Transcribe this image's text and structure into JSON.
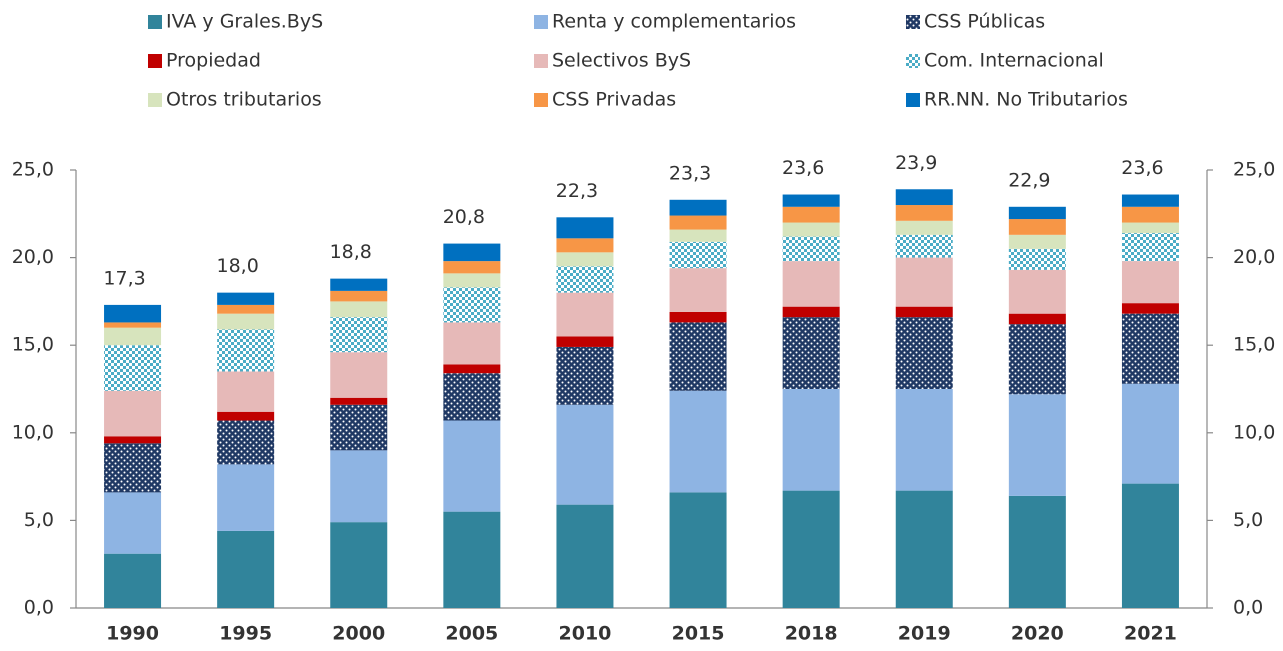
{
  "chart_data": {
    "type": "stacked_bar",
    "categories": [
      "1990",
      "1995",
      "2000",
      "2005",
      "2010",
      "2015",
      "2018",
      "2019",
      "2020",
      "2021"
    ],
    "series": [
      {
        "name": "IVA y Grales.ByS",
        "color": "#31849b",
        "values": [
          3.1,
          4.4,
          4.9,
          5.5,
          5.9,
          6.6,
          6.7,
          6.7,
          6.4,
          7.1
        ]
      },
      {
        "name": "Renta y complementarios",
        "color": "#8eb4e3",
        "values": [
          3.5,
          3.8,
          4.1,
          5.2,
          5.7,
          5.8,
          5.8,
          5.8,
          5.8,
          5.7
        ]
      },
      {
        "name": "CSS Públicas",
        "color": "#1f3864",
        "pattern": "dots",
        "values": [
          2.8,
          2.5,
          2.6,
          2.7,
          3.3,
          3.9,
          4.1,
          4.1,
          4.0,
          4.0
        ]
      },
      {
        "name": "Propiedad",
        "color": "#c00000",
        "values": [
          0.4,
          0.5,
          0.4,
          0.5,
          0.6,
          0.6,
          0.6,
          0.6,
          0.6,
          0.6
        ]
      },
      {
        "name": "Selectivos ByS",
        "color": "#e6b9b8",
        "values": [
          2.6,
          2.3,
          2.6,
          2.4,
          2.5,
          2.5,
          2.6,
          2.8,
          2.5,
          2.4
        ]
      },
      {
        "name": "Com. Internacional",
        "color": "#4bacc6",
        "pattern": "checks",
        "values": [
          2.6,
          2.4,
          2.0,
          2.0,
          1.5,
          1.5,
          1.4,
          1.3,
          1.2,
          1.6
        ]
      },
      {
        "name": "Otros tributarios",
        "color": "#d7e4bd",
        "values": [
          1.0,
          0.9,
          0.9,
          0.8,
          0.8,
          0.7,
          0.8,
          0.8,
          0.8,
          0.6
        ]
      },
      {
        "name": "CSS Privadas",
        "color": "#f79646",
        "values": [
          0.3,
          0.5,
          0.6,
          0.7,
          0.8,
          0.8,
          0.9,
          0.9,
          0.9,
          0.9
        ]
      },
      {
        "name": "RR.NN. No Tributarios",
        "color": "#0070c0",
        "values": [
          1.0,
          0.7,
          0.7,
          1.0,
          1.2,
          0.9,
          0.7,
          0.9,
          0.7,
          0.7
        ]
      }
    ],
    "totals": [
      17.3,
      18.0,
      18.8,
      20.8,
      22.3,
      23.3,
      23.6,
      23.9,
      22.9,
      23.6
    ],
    "total_labels": [
      "17,3",
      "18,0",
      "18,8",
      "20,8",
      "22,3",
      "23,3",
      "23,6",
      "23,9",
      "22,9",
      "23,6"
    ],
    "ylim": [
      0,
      25
    ],
    "yticks": [
      {
        "value": 0,
        "label": "0,0"
      },
      {
        "value": 5,
        "label": "5,0"
      },
      {
        "value": 10,
        "label": "10,0"
      },
      {
        "value": 15,
        "label": "15,0"
      },
      {
        "value": 20,
        "label": "20,0"
      },
      {
        "value": 25,
        "label": "25,0"
      }
    ],
    "y2lim": [
      0,
      25
    ],
    "y2ticks": [
      {
        "value": 0,
        "label": "0,0"
      },
      {
        "value": 5,
        "label": "5,0"
      },
      {
        "value": 10,
        "label": "10,0"
      },
      {
        "value": 15,
        "label": "15,0"
      },
      {
        "value": 20,
        "label": "20,0"
      },
      {
        "value": 25,
        "label": "25,0"
      }
    ],
    "grid": false,
    "legend": "top"
  }
}
